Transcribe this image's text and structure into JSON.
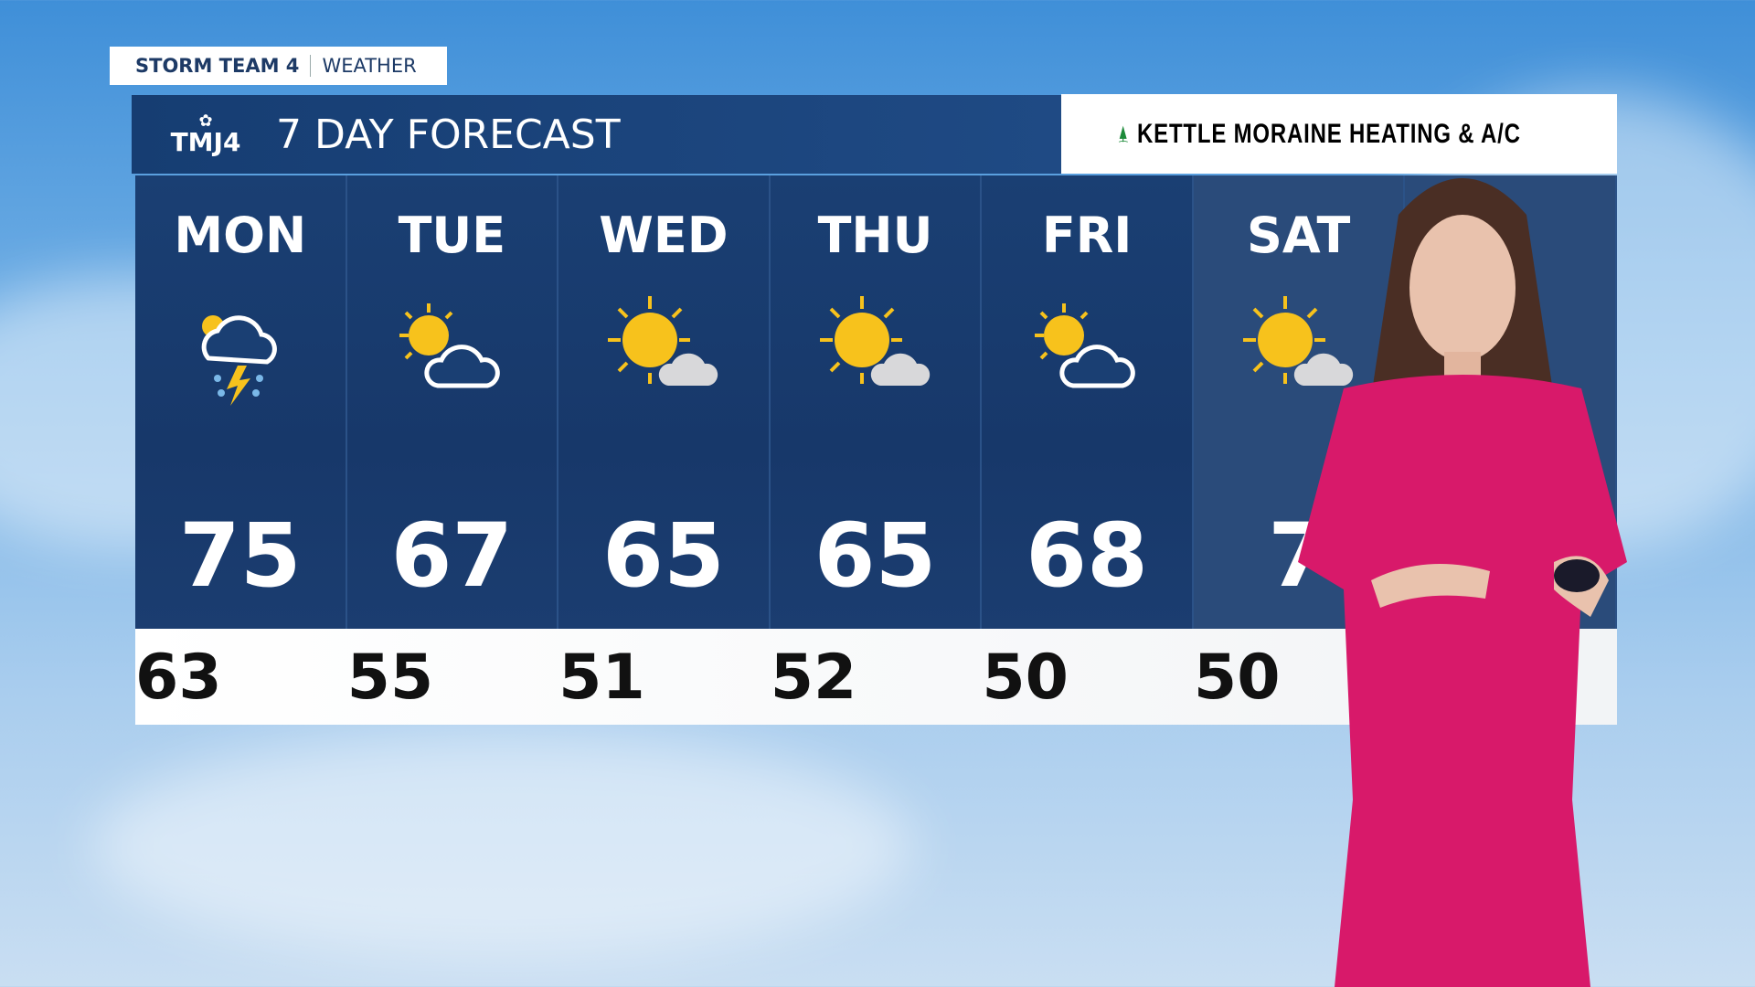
{
  "tag": {
    "brand": "STORM TEAM 4",
    "section": "WEATHER"
  },
  "header": {
    "logo": "TMJ4",
    "title": "7 DAY FORECAST"
  },
  "sponsor": {
    "name": "KETTLE MORAINE HEATING & A/C"
  },
  "days": [
    {
      "day": "MON",
      "icon": "thunderstorm-icon",
      "high": "75",
      "low": "63"
    },
    {
      "day": "TUE",
      "icon": "partly-cloudy-icon",
      "high": "67",
      "low": "55"
    },
    {
      "day": "WED",
      "icon": "mostly-sunny-icon",
      "high": "65",
      "low": "51"
    },
    {
      "day": "THU",
      "icon": "mostly-sunny-icon",
      "high": "65",
      "low": "52"
    },
    {
      "day": "FRI",
      "icon": "partly-cloudy-icon",
      "high": "68",
      "low": "50"
    },
    {
      "day": "SAT",
      "icon": "mostly-sunny-icon",
      "high": "7",
      "low": "50"
    },
    {
      "day": "",
      "icon": "",
      "high": "",
      "low": ""
    }
  ],
  "colors": {
    "panel": "#1a3f73",
    "sun": "#f7c21c",
    "dress": "#d8196a"
  }
}
